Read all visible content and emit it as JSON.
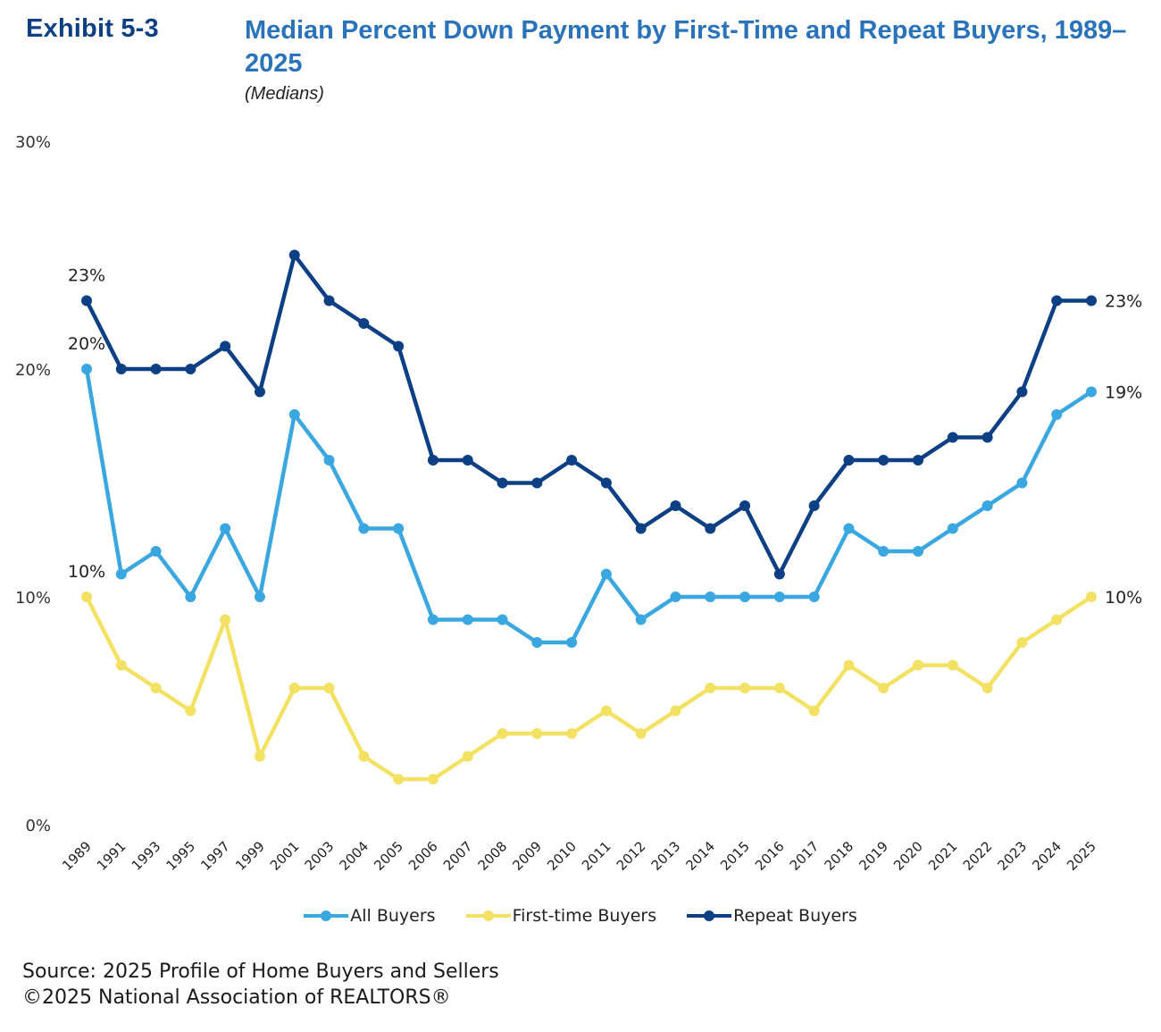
{
  "header": {
    "exhibit": "Exhibit 5-3",
    "title": "Median Percent Down Payment by First-Time and Repeat Buyers, 1989–2025",
    "subtitle": "(Medians)"
  },
  "footer": {
    "source": "Source: 2025 Profile of Home Buyers and Sellers",
    "copyright": "©2025 National Association of REALTORS®"
  },
  "chart_data": {
    "type": "line",
    "title": "Median Percent Down Payment by First-Time and Repeat Buyers, 1989–2025",
    "subtitle": "(Medians)",
    "xlabel": "",
    "ylabel": "",
    "ylim": [
      0,
      30
    ],
    "yticks": [
      0,
      10,
      20,
      30
    ],
    "ytick_labels": [
      "0%",
      "10%",
      "20%",
      "30%"
    ],
    "grid": false,
    "legend_position": "bottom-center",
    "categories": [
      "1989",
      "1991",
      "1993",
      "1995",
      "1997",
      "1999",
      "2001",
      "2003",
      "2004",
      "2005",
      "2006",
      "2007",
      "2008",
      "2009",
      "2010",
      "2011",
      "2012",
      "2013",
      "2014",
      "2015",
      "2016",
      "2017",
      "2018",
      "2019",
      "2020",
      "2021",
      "2022",
      "2023",
      "2024",
      "2025"
    ],
    "series": [
      {
        "name": "All Buyers",
        "color": "#3aa7e0",
        "values": [
          20,
          11,
          12,
          10,
          13,
          10,
          18,
          16,
          13,
          13,
          9,
          9,
          9,
          8,
          8,
          11,
          9,
          10,
          10,
          10,
          10,
          10,
          13,
          12,
          12,
          13,
          14,
          15,
          18,
          19
        ],
        "labels": [
          {
            "index": 0,
            "text": "20%",
            "position": "above"
          },
          {
            "index": 29,
            "text": "19%",
            "position": "right"
          }
        ]
      },
      {
        "name": "First-time Buyers",
        "color": "#f2e163",
        "values": [
          10,
          7,
          6,
          5,
          9,
          3,
          6,
          6,
          3,
          2,
          2,
          3,
          4,
          4,
          4,
          5,
          4,
          5,
          6,
          6,
          6,
          5,
          7,
          6,
          7,
          7,
          6,
          8,
          9,
          10
        ],
        "labels": [
          {
            "index": 0,
            "text": "10%",
            "position": "above"
          },
          {
            "index": 29,
            "text": "10%",
            "position": "right"
          }
        ]
      },
      {
        "name": "Repeat Buyers",
        "color": "#0c3f84",
        "values": [
          23,
          20,
          20,
          20,
          21,
          19,
          25,
          23,
          22,
          21,
          16,
          16,
          15,
          15,
          16,
          15,
          13,
          14,
          13,
          14,
          11,
          14,
          16,
          16,
          16,
          17,
          17,
          19,
          23,
          23
        ],
        "labels": [
          {
            "index": 0,
            "text": "23%",
            "position": "above"
          },
          {
            "index": 29,
            "text": "23%",
            "position": "right"
          }
        ]
      }
    ]
  }
}
